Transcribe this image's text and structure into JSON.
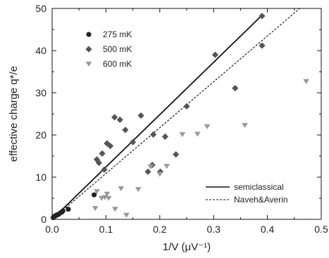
{
  "chart_data": {
    "type": "scatter",
    "xlabel": "1/V  (μV⁻¹)",
    "ylabel": "effective charge  q*/e",
    "xlim": [
      0,
      0.5
    ],
    "ylim": [
      0,
      50
    ],
    "x_ticks": [
      "0.0",
      "0.1",
      "0.2",
      "0.3",
      "0.4",
      "0.5"
    ],
    "y_ticks": [
      "0",
      "10",
      "20",
      "30",
      "40",
      "50"
    ],
    "grid": false,
    "legend_position": "top-left",
    "series": [
      {
        "name": "275 mK",
        "marker": "circle",
        "color": "#222222",
        "points": [
          [
            0.002,
            0.4
          ],
          [
            0.004,
            0.7
          ],
          [
            0.006,
            0.8
          ],
          [
            0.008,
            1.0
          ],
          [
            0.01,
            1.1
          ],
          [
            0.012,
            1.2
          ],
          [
            0.015,
            1.5
          ],
          [
            0.018,
            1.7
          ],
          [
            0.02,
            2.0
          ],
          [
            0.03,
            2.4
          ],
          [
            0.078,
            5.8
          ]
        ]
      },
      {
        "name": "500 mK",
        "marker": "diamond",
        "color": "#555555",
        "points": [
          [
            0.083,
            14.2
          ],
          [
            0.087,
            13.4
          ],
          [
            0.093,
            15.6
          ],
          [
            0.097,
            11.8
          ],
          [
            0.102,
            18.0
          ],
          [
            0.108,
            17.4
          ],
          [
            0.116,
            24.2
          ],
          [
            0.126,
            23.6
          ],
          [
            0.136,
            21.2
          ],
          [
            0.15,
            18.3
          ],
          [
            0.165,
            24.6
          ],
          [
            0.178,
            11.3
          ],
          [
            0.186,
            12.9
          ],
          [
            0.188,
            20.1
          ],
          [
            0.201,
            11.3
          ],
          [
            0.21,
            19.6
          ],
          [
            0.23,
            15.4
          ],
          [
            0.25,
            26.8
          ],
          [
            0.303,
            39.0
          ],
          [
            0.34,
            31.1
          ],
          [
            0.39,
            48.2
          ],
          [
            0.39,
            41.2
          ]
        ]
      },
      {
        "name": "600 mK",
        "marker": "triangle-down",
        "color": "#999999",
        "points": [
          [
            0.08,
            2.6
          ],
          [
            0.083,
            6.6
          ],
          [
            0.092,
            5.0
          ],
          [
            0.098,
            5.2
          ],
          [
            0.102,
            6.0
          ],
          [
            0.105,
            5.0
          ],
          [
            0.117,
            2.4
          ],
          [
            0.128,
            7.3
          ],
          [
            0.138,
            1.0
          ],
          [
            0.16,
            7.1
          ],
          [
            0.183,
            12.5
          ],
          [
            0.2,
            10.7
          ],
          [
            0.213,
            12.6
          ],
          [
            0.242,
            20.1
          ],
          [
            0.27,
            20.2
          ],
          [
            0.288,
            22.0
          ],
          [
            0.358,
            22.3
          ],
          [
            0.472,
            32.7
          ]
        ]
      }
    ],
    "lines": [
      {
        "name": "semiclassical",
        "style": "solid",
        "x": [
          0,
          0.39
        ],
        "y": [
          0,
          48.4
        ]
      },
      {
        "name": "Naveh&Averin",
        "style": "dashed",
        "x": [
          0,
          0.46
        ],
        "y": [
          0,
          50
        ]
      }
    ]
  }
}
